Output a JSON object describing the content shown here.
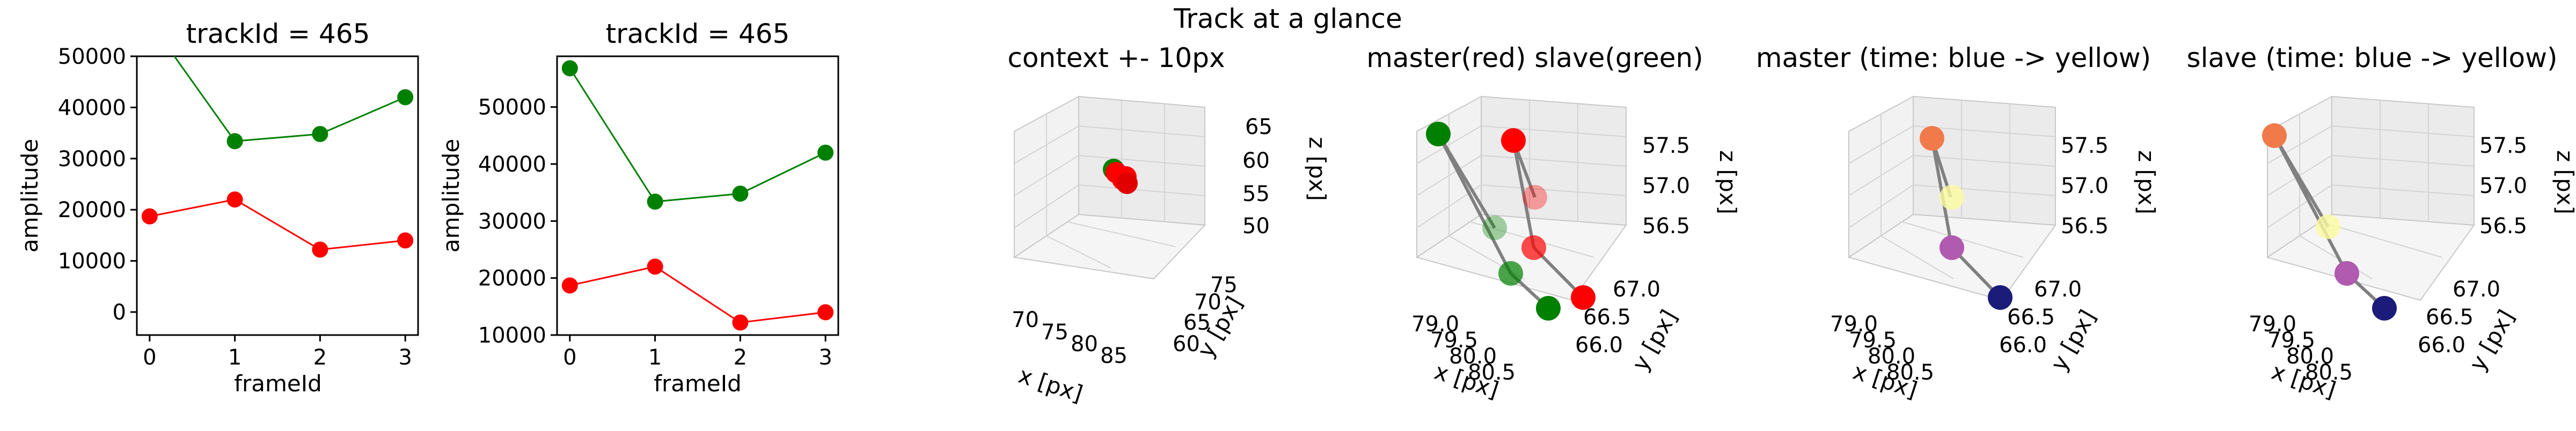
{
  "figure": {
    "suptitle": "Track at a glance"
  },
  "chart_data": [
    {
      "type": "line",
      "title": "trackId = 465",
      "xlabel": "frameId",
      "ylabel": "amplitude",
      "x": [
        0,
        1,
        2,
        3
      ],
      "xticks": [
        "0",
        "1",
        "2",
        "3"
      ],
      "xlim": [
        -0.15,
        3.15
      ],
      "ylim": [
        -4500,
        50000
      ],
      "yticks": [
        0,
        10000,
        20000,
        30000,
        40000,
        50000
      ],
      "ytick_labels": [
        "0",
        "10000",
        "20000",
        "30000",
        "40000",
        "50000"
      ],
      "series": [
        {
          "color": "#008000",
          "values": [
            56800,
            33400,
            34800,
            42000
          ]
        },
        {
          "color": "#ff0000",
          "values": [
            18700,
            22000,
            12200,
            14000
          ]
        }
      ]
    },
    {
      "type": "line",
      "title": "trackId = 465",
      "xlabel": "frameId",
      "ylabel": "amplitude",
      "x": [
        0,
        1,
        2,
        3
      ],
      "xticks": [
        "0",
        "1",
        "2",
        "3"
      ],
      "xlim": [
        -0.15,
        3.15
      ],
      "ylim": [
        10000,
        58900
      ],
      "yticks": [
        10000,
        20000,
        30000,
        40000,
        50000
      ],
      "ytick_labels": [
        "10000",
        "20000",
        "30000",
        "40000",
        "50000"
      ],
      "series": [
        {
          "color": "#008000",
          "values": [
            56800,
            33400,
            34800,
            42000
          ]
        },
        {
          "color": "#ff0000",
          "values": [
            18700,
            22000,
            12200,
            14000
          ]
        }
      ]
    },
    {
      "type": "scatter3d",
      "title": "context +- 10px",
      "xlabel": "x [px]",
      "ylabel": "y [px]",
      "zlabel": "z [px]",
      "xticks": [
        "70",
        "75",
        "80",
        "85"
      ],
      "yticks": [
        "60",
        "65",
        "70",
        "75"
      ],
      "zticks": [
        "50",
        "55",
        "60",
        "65"
      ],
      "points_description": "green and red markers clustered at about x 80, y 67, z 57"
    },
    {
      "type": "scatter3d",
      "title": "master(red) slave(green)",
      "xlabel": "x [px]",
      "ylabel": "y [px]",
      "zlabel": "z [px]",
      "xticks": [
        "79.0",
        "79.5",
        "80.0",
        "80.5"
      ],
      "yticks": [
        "66.0",
        "66.5",
        "67.0"
      ],
      "zticks": [
        "56.5",
        "57.0",
        "57.5"
      ],
      "series": [
        {
          "name": "master",
          "color": "#ff0000"
        },
        {
          "name": "slave",
          "color": "#008000"
        }
      ]
    },
    {
      "type": "scatter3d",
      "title": "master (time: blue -> yellow)",
      "xlabel": "x [px]",
      "ylabel": "y [px]",
      "zlabel": "z [px]",
      "xticks": [
        "79.0",
        "79.5",
        "80.0",
        "80.5"
      ],
      "yticks": [
        "66.0",
        "66.5",
        "67.0"
      ],
      "zticks": [
        "56.5",
        "57.0",
        "57.5"
      ]
    },
    {
      "type": "scatter3d",
      "title": "slave (time: blue -> yellow)",
      "xlabel": "x [px]",
      "ylabel": "y [px]",
      "zlabel": "z [px]",
      "xticks": [
        "79.0",
        "79.5",
        "80.0",
        "80.5"
      ],
      "yticks": [
        "66.0",
        "66.5",
        "67.0"
      ],
      "zticks": [
        "56.5",
        "57.0",
        "57.5"
      ]
    }
  ]
}
